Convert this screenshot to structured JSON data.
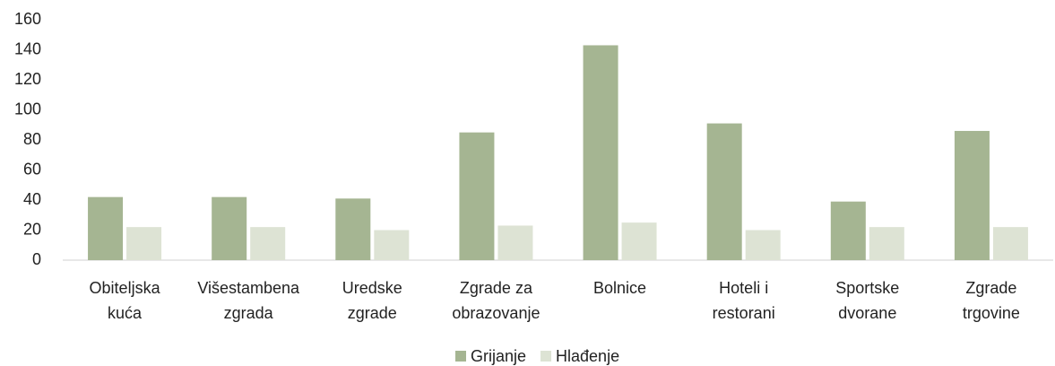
{
  "chart_data": {
    "type": "bar",
    "categories": [
      "Obiteljska\nkuća",
      "Višestambena\nzgrada",
      "Uredske\nzgrade",
      "Zgrade za\nobrazovanje",
      "Bolnice",
      "Hoteli i\nrestorani",
      "Sportske\ndvorane",
      "Zgrade\ntrgovine"
    ],
    "series": [
      {
        "name": "Grijanje",
        "color": "#a5b592",
        "values": [
          42,
          42,
          41,
          85,
          143,
          91,
          39,
          86
        ]
      },
      {
        "name": "Hlađenje",
        "color": "#dde3d4",
        "values": [
          22,
          22,
          20,
          23,
          25,
          20,
          22,
          22
        ]
      }
    ],
    "ylim": [
      0,
      160
    ],
    "yticks": [
      0,
      20,
      40,
      60,
      80,
      100,
      120,
      140,
      160
    ],
    "grid": false,
    "legend": "bottom"
  }
}
